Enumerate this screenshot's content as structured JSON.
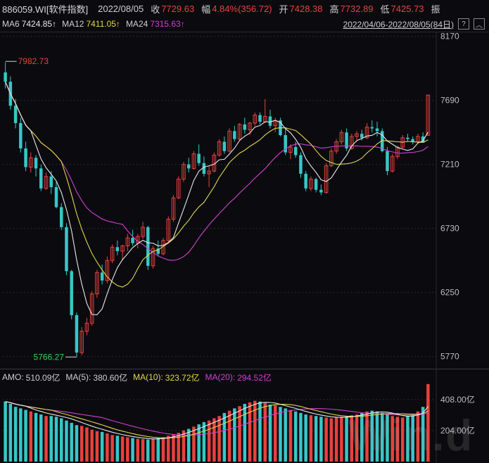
{
  "header": {
    "symbol": "886059.WI[软件指数]",
    "date": "2022/08/05",
    "close_label": "收",
    "close_value": "7729.63",
    "change_label": "幅",
    "change_value": "4.84%(356.72)",
    "open_label": "开",
    "open_value": "7428.38",
    "high_label": "高",
    "high_value": "7732.89",
    "low_label": "低",
    "low_value": "7425.73",
    "amp_label": "振"
  },
  "ma_legend": {
    "ma6_label": "MA6",
    "ma6_value": "7424.85↑",
    "ma12_label": "MA12",
    "ma12_value": "7411.05↑",
    "ma24_label": "MA24",
    "ma24_value": "7315.63↑"
  },
  "range_text": "2022/04/06-2022/08/05(84日)",
  "amo_legend": {
    "amo_label": "AMO:",
    "amo_value": "510.09亿",
    "ma5_label": "MA(5):",
    "ma5_value": "380.60亿",
    "ma10_label": "MA(10):",
    "ma10_value": "323.72亿",
    "ma20_label": "MA(20):",
    "ma20_value": "294.52亿"
  },
  "watermark": "Win.d",
  "colors": {
    "up": "#e8413d",
    "down": "#37c7c7",
    "ma6": "#e8e8e8",
    "ma12": "#e0d84b",
    "ma24": "#d23fd2",
    "background": "#0b0b0f"
  },
  "chart_data": [
    {
      "type": "candlestick",
      "y_ticks": [
        5770,
        6250,
        6730,
        7210,
        7690,
        8170
      ],
      "ylim": [
        5700,
        8200
      ],
      "max_annotation": "7982.73",
      "min_annotation": "5766.27",
      "ohlc": [
        [
          7900,
          7975,
          7780,
          7830
        ],
        [
          7830,
          7870,
          7620,
          7650
        ],
        [
          7650,
          7700,
          7480,
          7520
        ],
        [
          7520,
          7560,
          7300,
          7330
        ],
        [
          7330,
          7380,
          7160,
          7190
        ],
        [
          7190,
          7300,
          7150,
          7260
        ],
        [
          7260,
          7280,
          7120,
          7180
        ],
        [
          7180,
          7210,
          7010,
          7030
        ],
        [
          7030,
          7150,
          7020,
          7120
        ],
        [
          7120,
          7160,
          6990,
          7040
        ],
        [
          7040,
          7080,
          6880,
          6890
        ],
        [
          6890,
          6920,
          6720,
          6740
        ],
        [
          6740,
          6770,
          6380,
          6410
        ],
        [
          6410,
          6420,
          6050,
          6080
        ],
        [
          6080,
          6100,
          5770,
          5800
        ],
        [
          5800,
          5990,
          5780,
          5960
        ],
        [
          5960,
          6060,
          5930,
          6020
        ],
        [
          6020,
          6260,
          6000,
          6240
        ],
        [
          6240,
          6420,
          6210,
          6400
        ],
        [
          6400,
          6460,
          6310,
          6340
        ],
        [
          6340,
          6520,
          6320,
          6490
        ],
        [
          6490,
          6610,
          6470,
          6590
        ],
        [
          6590,
          6640,
          6530,
          6560
        ],
        [
          6560,
          6610,
          6490,
          6600
        ],
        [
          6600,
          6690,
          6560,
          6660
        ],
        [
          6660,
          6720,
          6600,
          6620
        ],
        [
          6620,
          6690,
          6580,
          6670
        ],
        [
          6670,
          6780,
          6650,
          6740
        ],
        [
          6740,
          6750,
          6420,
          6450
        ],
        [
          6450,
          6600,
          6430,
          6580
        ],
        [
          6580,
          6640,
          6520,
          6540
        ],
        [
          6540,
          6660,
          6530,
          6640
        ],
        [
          6640,
          6820,
          6620,
          6800
        ],
        [
          6800,
          6980,
          6780,
          6960
        ],
        [
          6960,
          7120,
          6950,
          7100
        ],
        [
          7100,
          7230,
          7080,
          7210
        ],
        [
          7210,
          7260,
          7150,
          7180
        ],
        [
          7180,
          7310,
          7170,
          7290
        ],
        [
          7290,
          7360,
          7200,
          7220
        ],
        [
          7220,
          7270,
          7120,
          7140
        ],
        [
          7140,
          7200,
          7040,
          7160
        ],
        [
          7160,
          7300,
          7150,
          7280
        ],
        [
          7280,
          7400,
          7270,
          7380
        ],
        [
          7380,
          7420,
          7290,
          7310
        ],
        [
          7310,
          7480,
          7300,
          7460
        ],
        [
          7460,
          7500,
          7380,
          7400
        ],
        [
          7400,
          7520,
          7390,
          7510
        ],
        [
          7510,
          7560,
          7440,
          7470
        ],
        [
          7470,
          7530,
          7430,
          7520
        ],
        [
          7520,
          7600,
          7500,
          7580
        ],
        [
          7580,
          7600,
          7510,
          7530
        ],
        [
          7530,
          7700,
          7520,
          7570
        ],
        [
          7570,
          7620,
          7480,
          7500
        ],
        [
          7500,
          7560,
          7450,
          7540
        ],
        [
          7540,
          7560,
          7420,
          7430
        ],
        [
          7430,
          7480,
          7280,
          7300
        ],
        [
          7300,
          7360,
          7250,
          7340
        ],
        [
          7340,
          7380,
          7260,
          7280
        ],
        [
          7280,
          7300,
          7110,
          7140
        ],
        [
          7140,
          7160,
          7010,
          7030
        ],
        [
          7030,
          7120,
          7010,
          7100
        ],
        [
          7100,
          7110,
          7000,
          7020
        ],
        [
          7020,
          7060,
          6980,
          7000
        ],
        [
          7000,
          7220,
          6990,
          7200
        ],
        [
          7200,
          7330,
          7190,
          7310
        ],
        [
          7310,
          7400,
          7290,
          7380
        ],
        [
          7380,
          7470,
          7360,
          7450
        ],
        [
          7450,
          7480,
          7310,
          7330
        ],
        [
          7330,
          7440,
          7320,
          7420
        ],
        [
          7420,
          7460,
          7380,
          7440
        ],
        [
          7440,
          7470,
          7390,
          7410
        ],
        [
          7410,
          7520,
          7400,
          7490
        ],
        [
          7490,
          7540,
          7450,
          7480
        ],
        [
          7480,
          7530,
          7420,
          7460
        ],
        [
          7460,
          7480,
          7300,
          7310
        ],
        [
          7310,
          7340,
          7130,
          7160
        ],
        [
          7160,
          7290,
          7150,
          7270
        ],
        [
          7270,
          7350,
          7250,
          7340
        ],
        [
          7340,
          7430,
          7330,
          7410
        ],
        [
          7410,
          7440,
          7380,
          7400
        ],
        [
          7400,
          7420,
          7360,
          7380
        ],
        [
          7380,
          7440,
          7370,
          7420
        ],
        [
          7420,
          7450,
          7390,
          7373
        ],
        [
          7428,
          7733,
          7426,
          7730
        ]
      ]
    },
    {
      "type": "bar",
      "y_ticks": [
        204.0,
        408.0
      ],
      "y_tick_labels": [
        "204.00亿",
        "408.00亿"
      ],
      "ylim": [
        0,
        500
      ],
      "values": [
        395,
        380,
        360,
        350,
        340,
        330,
        320,
        310,
        300,
        300,
        295,
        285,
        270,
        255,
        240,
        235,
        225,
        210,
        200,
        195,
        185,
        175,
        170,
        165,
        160,
        155,
        150,
        148,
        145,
        150,
        155,
        160,
        170,
        180,
        190,
        205,
        215,
        230,
        245,
        260,
        270,
        285,
        300,
        320,
        335,
        350,
        365,
        380,
        390,
        400,
        395,
        385,
        375,
        370,
        360,
        350,
        340,
        330,
        320,
        310,
        305,
        300,
        295,
        290,
        285,
        290,
        295,
        300,
        305,
        310,
        320,
        330,
        335,
        330,
        320,
        310,
        300,
        295,
        290,
        300,
        315,
        330,
        360,
        510
      ]
    }
  ]
}
